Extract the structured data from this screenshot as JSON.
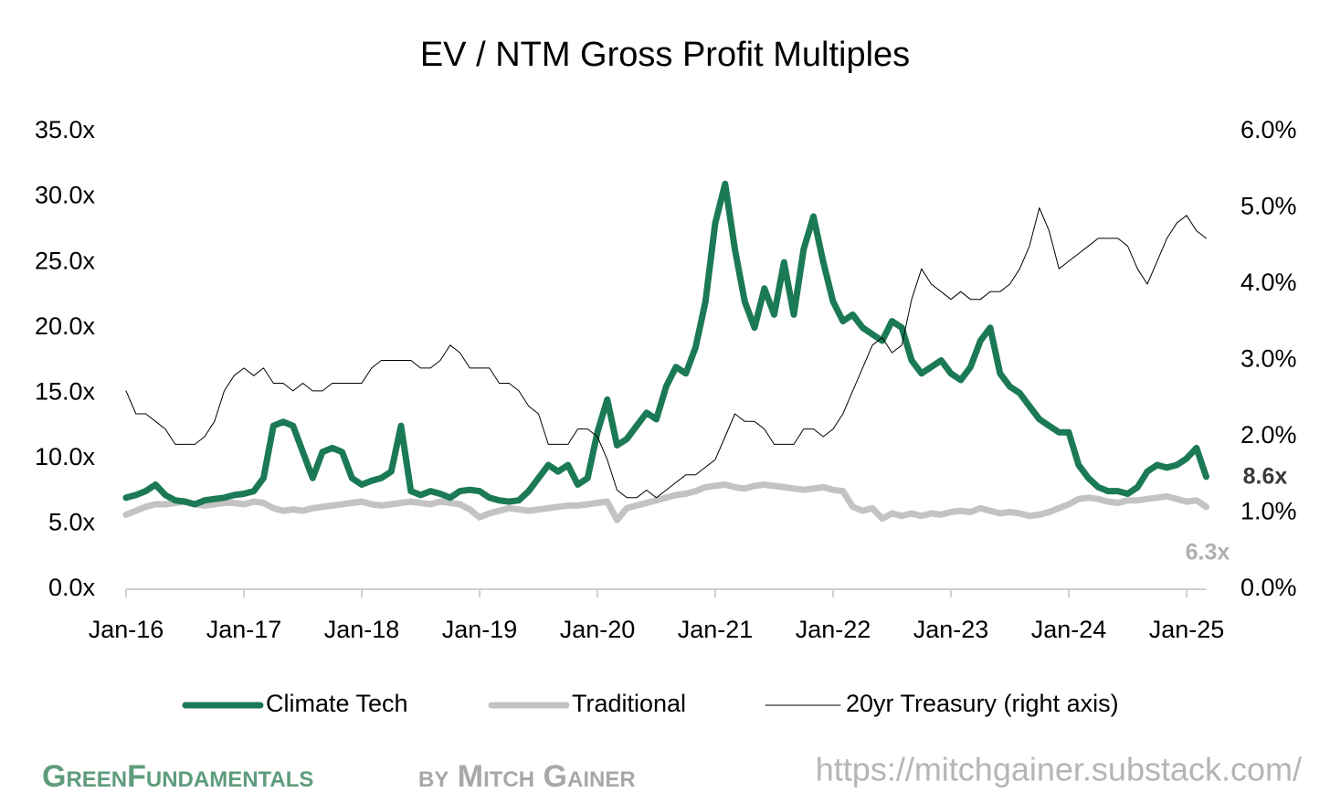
{
  "chart_data": {
    "type": "line",
    "title": "EV / NTM Gross Profit Multiples",
    "categories": [
      "Jan-16",
      null,
      null,
      null,
      null,
      null,
      null,
      null,
      null,
      null,
      null,
      null,
      "Jan-17",
      null,
      null,
      null,
      null,
      null,
      null,
      null,
      null,
      null,
      null,
      null,
      "Jan-18",
      null,
      null,
      null,
      null,
      null,
      null,
      null,
      null,
      null,
      null,
      null,
      "Jan-19",
      null,
      null,
      null,
      null,
      null,
      null,
      null,
      null,
      null,
      null,
      null,
      "Jan-20",
      null,
      null,
      null,
      null,
      null,
      null,
      null,
      null,
      null,
      null,
      null,
      "Jan-21",
      null,
      null,
      null,
      null,
      null,
      null,
      null,
      null,
      null,
      null,
      null,
      "Jan-22",
      null,
      null,
      null,
      null,
      null,
      null,
      null,
      null,
      null,
      null,
      null,
      "Jan-23",
      null,
      null,
      null,
      null,
      null,
      null,
      null,
      null,
      null,
      null,
      null,
      "Jan-24",
      null,
      null,
      null,
      null,
      null,
      null,
      null,
      null,
      null,
      null,
      null,
      "Jan-25",
      null,
      null
    ],
    "series": [
      {
        "name": "Climate Tech",
        "color": "#1b7a55",
        "values": [
          7.0,
          7.2,
          7.5,
          8.0,
          7.2,
          6.8,
          6.7,
          6.5,
          6.8,
          6.9,
          7.0,
          7.2,
          7.3,
          7.5,
          8.5,
          12.5,
          12.8,
          12.5,
          10.5,
          8.5,
          10.5,
          10.8,
          10.5,
          8.5,
          8.0,
          8.3,
          8.5,
          9.0,
          12.5,
          7.5,
          7.2,
          7.5,
          7.3,
          7.0,
          7.5,
          7.6,
          7.5,
          7.0,
          6.8,
          6.7,
          6.8,
          7.5,
          8.5,
          9.5,
          9.0,
          9.5,
          8.0,
          8.5,
          12.0,
          14.5,
          11.0,
          11.5,
          12.5,
          13.5,
          13.0,
          15.5,
          17.0,
          16.5,
          18.5,
          22.0,
          28.0,
          31.0,
          26.0,
          22.0,
          20.0,
          23.0,
          21.0,
          25.0,
          21.0,
          26.0,
          28.5,
          25.0,
          22.0,
          20.5,
          21.0,
          20.0,
          19.5,
          19.0,
          20.5,
          20.0,
          17.5,
          16.5,
          17.0,
          17.5,
          16.5,
          16.0,
          17.0,
          19.0,
          20.0,
          16.5,
          15.5,
          15.0,
          14.0,
          13.0,
          12.5,
          12.0,
          12.0,
          9.5,
          8.5,
          7.8,
          7.5,
          7.5,
          7.3,
          7.8,
          9.0,
          9.5,
          9.3,
          9.5,
          10.0,
          10.8,
          8.6
        ]
      },
      {
        "name": "Traditional",
        "color": "#c3c3c3",
        "values": [
          5.7,
          6.0,
          6.3,
          6.5,
          6.5,
          6.6,
          6.7,
          6.5,
          6.4,
          6.5,
          6.6,
          6.6,
          6.5,
          6.7,
          6.6,
          6.2,
          6.0,
          6.1,
          6.0,
          6.2,
          6.3,
          6.4,
          6.5,
          6.6,
          6.7,
          6.5,
          6.4,
          6.5,
          6.6,
          6.7,
          6.6,
          6.5,
          6.7,
          6.6,
          6.5,
          6.1,
          5.5,
          5.8,
          6.0,
          6.2,
          6.1,
          6.0,
          6.1,
          6.2,
          6.3,
          6.4,
          6.4,
          6.5,
          6.6,
          6.7,
          5.3,
          6.2,
          6.4,
          6.6,
          6.8,
          7.0,
          7.2,
          7.3,
          7.5,
          7.8,
          7.9,
          8.0,
          7.8,
          7.7,
          7.9,
          8.0,
          7.9,
          7.8,
          7.7,
          7.6,
          7.7,
          7.8,
          7.6,
          7.5,
          6.3,
          6.0,
          6.2,
          5.4,
          5.8,
          5.6,
          5.8,
          5.6,
          5.8,
          5.7,
          5.9,
          6.0,
          5.9,
          6.2,
          6.0,
          5.8,
          5.9,
          5.8,
          5.6,
          5.7,
          5.9,
          6.2,
          6.5,
          6.9,
          7.0,
          6.9,
          6.7,
          6.6,
          6.8,
          6.8,
          6.9,
          7.0,
          7.1,
          6.9,
          6.7,
          6.8,
          6.3
        ]
      },
      {
        "name": "20yr Treasury (right axis)",
        "color": "#000000",
        "axis": "y2",
        "values": [
          2.6,
          2.3,
          2.3,
          2.2,
          2.1,
          1.9,
          1.9,
          1.9,
          2.0,
          2.2,
          2.6,
          2.8,
          2.9,
          2.8,
          2.9,
          2.7,
          2.7,
          2.6,
          2.7,
          2.6,
          2.6,
          2.7,
          2.7,
          2.7,
          2.7,
          2.9,
          3.0,
          3.0,
          3.0,
          3.0,
          2.9,
          2.9,
          3.0,
          3.2,
          3.1,
          2.9,
          2.9,
          2.9,
          2.7,
          2.7,
          2.6,
          2.4,
          2.3,
          1.9,
          1.9,
          1.9,
          2.1,
          2.1,
          2.0,
          1.7,
          1.3,
          1.2,
          1.2,
          1.3,
          1.2,
          1.3,
          1.4,
          1.5,
          1.5,
          1.6,
          1.7,
          2.0,
          2.3,
          2.2,
          2.2,
          2.1,
          1.9,
          1.9,
          1.9,
          2.1,
          2.1,
          2.0,
          2.1,
          2.3,
          2.6,
          2.9,
          3.2,
          3.3,
          3.1,
          3.2,
          3.8,
          4.2,
          4.0,
          3.9,
          3.8,
          3.9,
          3.8,
          3.8,
          3.9,
          3.9,
          4.0,
          4.2,
          4.5,
          5.0,
          4.7,
          4.2,
          4.3,
          4.4,
          4.5,
          4.6,
          4.6,
          4.6,
          4.5,
          4.2,
          4.0,
          4.3,
          4.6,
          4.8,
          4.9,
          4.7,
          4.6
        ]
      }
    ],
    "ylim": [
      0,
      35
    ],
    "yticks": [
      {
        "value": 0,
        "label": "0.0x"
      },
      {
        "value": 5,
        "label": "5.0x"
      },
      {
        "value": 10,
        "label": "10.0x"
      },
      {
        "value": 15,
        "label": "15.0x"
      },
      {
        "value": 20,
        "label": "20.0x"
      },
      {
        "value": 25,
        "label": "25.0x"
      },
      {
        "value": 30,
        "label": "30.0x"
      },
      {
        "value": 35,
        "label": "35.0x"
      }
    ],
    "y2lim": [
      0,
      6
    ],
    "y2ticks": [
      {
        "value": 0,
        "label": "0.0%"
      },
      {
        "value": 1,
        "label": "1.0%"
      },
      {
        "value": 2,
        "label": "2.0%"
      },
      {
        "value": 3,
        "label": "3.0%"
      },
      {
        "value": 4,
        "label": "4.0%"
      },
      {
        "value": 5,
        "label": "5.0%"
      },
      {
        "value": 6,
        "label": "6.0%"
      }
    ],
    "annotations": [
      "8.6x",
      "6.3x"
    ],
    "grid": false,
    "legend": "bottom"
  },
  "footer": {
    "brand": "GreenFundamentals",
    "byline": "by Mitch Gainer",
    "url": "https://mitchgainer.substack.com/"
  }
}
